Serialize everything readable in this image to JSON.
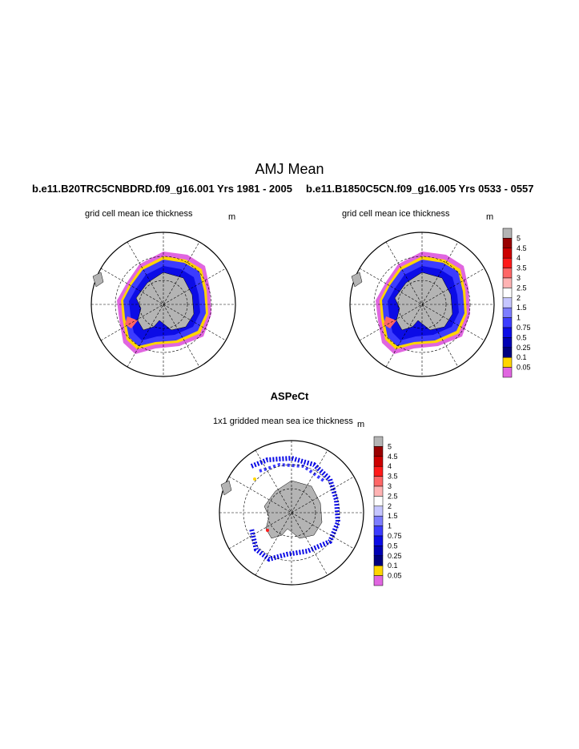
{
  "figure": {
    "title": "AMJ Mean",
    "panels": [
      {
        "case_label": "b.e11.B20TRC5CNBDRD.f09_g16.001  Yrs 1981 - 2005",
        "subtitle": "grid cell mean ice thickness",
        "units": "m"
      },
      {
        "case_label": "b.e11.B1850C5CN.f09_g16.005  Yrs 0533 - 0557",
        "subtitle": "grid cell mean ice thickness",
        "units": "m"
      },
      {
        "case_label": "ASPeCt",
        "subtitle": "1x1 gridded mean sea ice thickness",
        "units": "m"
      }
    ]
  },
  "chart_data": {
    "type": "heatmap",
    "title": "AMJ Mean",
    "variable": "sea ice thickness",
    "units": "m",
    "projection": "south polar stereographic",
    "colorbar": {
      "levels": [
        "5",
        "4.5",
        "4",
        "3.5",
        "3",
        "2.5",
        "2",
        "1.5",
        "1",
        "0.75",
        "0.5",
        "0.25",
        "0.1",
        "0.05"
      ],
      "colors": [
        "#b4b4b4",
        "#990000",
        "#cc0000",
        "#ff1a1a",
        "#ff6666",
        "#ffb3b3",
        "#ffffff",
        "#c6c6ff",
        "#7d7dff",
        "#3c3cff",
        "#0c0ce6",
        "#0000b4",
        "#00007f",
        "#ffd500",
        "#e066e0"
      ]
    },
    "panels": [
      {
        "name": "b.e11.B20TRC5CNBDRD.f09_g16.001  Yrs 1981 - 2005"
      },
      {
        "name": "b.e11.B1850C5CN.f09_g16.005  Yrs 0533 - 0557"
      },
      {
        "name": "ASPeCt"
      }
    ]
  }
}
